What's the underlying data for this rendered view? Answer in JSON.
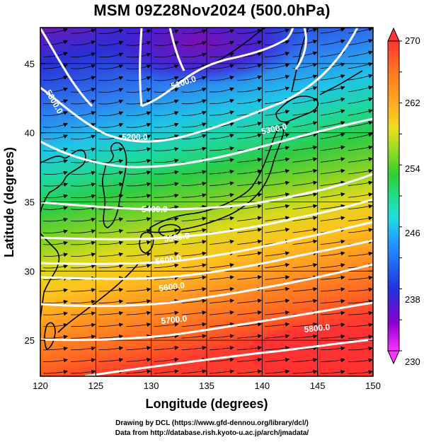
{
  "title": "MSM 09Z28Nov2024 (500.0hPa)",
  "axes": {
    "x_label": "Longitude (degrees)",
    "y_label": "Latitude  (degrees)",
    "x_ticks": [
      "120",
      "125",
      "130",
      "135",
      "140",
      "145",
      "150"
    ],
    "y_ticks": [
      "25",
      "30",
      "35",
      "40",
      "45"
    ],
    "x_range": [
      120,
      150
    ],
    "y_range": [
      22.4,
      47.6
    ]
  },
  "colorbar": {
    "labels": [
      "270",
      "262",
      "254",
      "246",
      "238",
      "230"
    ],
    "min": 230,
    "max": 270,
    "unit": "",
    "colors": [
      "#ff33ff",
      "#8800cc",
      "#2233dd",
      "#2299ff",
      "#22dddd",
      "#22dd88",
      "#33cc33",
      "#99dd22",
      "#eedd22",
      "#ffaa22",
      "#ff7722",
      "#ff3333"
    ]
  },
  "contours": {
    "labels": [
      "5100.0",
      "5200.0",
      "5300.0",
      "5300.0",
      "5400.0",
      "5500.0",
      "5600.0",
      "5600.0",
      "5700.0",
      "5800.0"
    ],
    "color": "#ffffff"
  },
  "credits": {
    "line1": "Drawing by DCL (https://www.gfd-dennou.org/library/dcl/)",
    "line2": "Data from http://database.rish.kyoto-u.ac.jp/arch/jmadata/"
  }
}
